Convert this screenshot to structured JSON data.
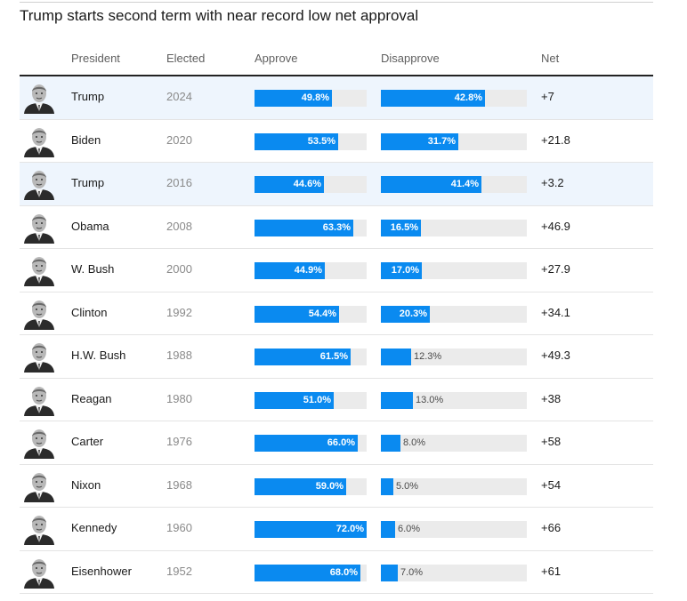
{
  "title": "Trump starts second term with near record low net approval",
  "columns": {
    "president": "President",
    "elected": "Elected",
    "approve": "Approve",
    "disapprove": "Disapprove",
    "net": "Net"
  },
  "colors": {
    "bar": "#0a8af0",
    "track": "#ebebeb",
    "highlight_row": "#eef5fd"
  },
  "chart_data": {
    "type": "table",
    "title": "Trump starts second term with near record low net approval",
    "approve_scale_max": 72.0,
    "disapprove_scale_max": 60.0,
    "rows": [
      {
        "president": "Trump",
        "elected": "2024",
        "approve": 49.8,
        "approve_label": "49.8%",
        "disapprove": 42.8,
        "disapprove_label": "42.8%",
        "net": "+7",
        "highlight": true,
        "portrait_icon": "president-portrait-icon"
      },
      {
        "president": "Biden",
        "elected": "2020",
        "approve": 53.5,
        "approve_label": "53.5%",
        "disapprove": 31.7,
        "disapprove_label": "31.7%",
        "net": "+21.8",
        "highlight": false,
        "portrait_icon": "president-portrait-icon"
      },
      {
        "president": "Trump",
        "elected": "2016",
        "approve": 44.6,
        "approve_label": "44.6%",
        "disapprove": 41.4,
        "disapprove_label": "41.4%",
        "net": "+3.2",
        "highlight": true,
        "portrait_icon": "president-portrait-icon"
      },
      {
        "president": "Obama",
        "elected": "2008",
        "approve": 63.3,
        "approve_label": "63.3%",
        "disapprove": 16.5,
        "disapprove_label": "16.5%",
        "net": "+46.9",
        "highlight": false,
        "portrait_icon": "president-portrait-icon"
      },
      {
        "president": "W. Bush",
        "elected": "2000",
        "approve": 44.9,
        "approve_label": "44.9%",
        "disapprove": 17.0,
        "disapprove_label": "17.0%",
        "net": "+27.9",
        "highlight": false,
        "portrait_icon": "president-portrait-icon"
      },
      {
        "president": "Clinton",
        "elected": "1992",
        "approve": 54.4,
        "approve_label": "54.4%",
        "disapprove": 20.3,
        "disapprove_label": "20.3%",
        "net": "+34.1",
        "highlight": false,
        "portrait_icon": "president-portrait-icon"
      },
      {
        "president": "H.W. Bush",
        "elected": "1988",
        "approve": 61.5,
        "approve_label": "61.5%",
        "disapprove": 12.3,
        "disapprove_label": "12.3%",
        "net": "+49.3",
        "highlight": false,
        "portrait_icon": "president-portrait-icon"
      },
      {
        "president": "Reagan",
        "elected": "1980",
        "approve": 51.0,
        "approve_label": "51.0%",
        "disapprove": 13.0,
        "disapprove_label": "13.0%",
        "net": "+38",
        "highlight": false,
        "portrait_icon": "president-portrait-icon"
      },
      {
        "president": "Carter",
        "elected": "1976",
        "approve": 66.0,
        "approve_label": "66.0%",
        "disapprove": 8.0,
        "disapprove_label": "8.0%",
        "net": "+58",
        "highlight": false,
        "portrait_icon": "president-portrait-icon"
      },
      {
        "president": "Nixon",
        "elected": "1968",
        "approve": 59.0,
        "approve_label": "59.0%",
        "disapprove": 5.0,
        "disapprove_label": "5.0%",
        "net": "+54",
        "highlight": false,
        "portrait_icon": "president-portrait-icon"
      },
      {
        "president": "Kennedy",
        "elected": "1960",
        "approve": 72.0,
        "approve_label": "72.0%",
        "disapprove": 6.0,
        "disapprove_label": "6.0%",
        "net": "+66",
        "highlight": false,
        "portrait_icon": "president-portrait-icon"
      },
      {
        "president": "Eisenhower",
        "elected": "1952",
        "approve": 68.0,
        "approve_label": "68.0%",
        "disapprove": 7.0,
        "disapprove_label": "7.0%",
        "net": "+61",
        "highlight": false,
        "portrait_icon": "president-portrait-icon"
      }
    ]
  }
}
